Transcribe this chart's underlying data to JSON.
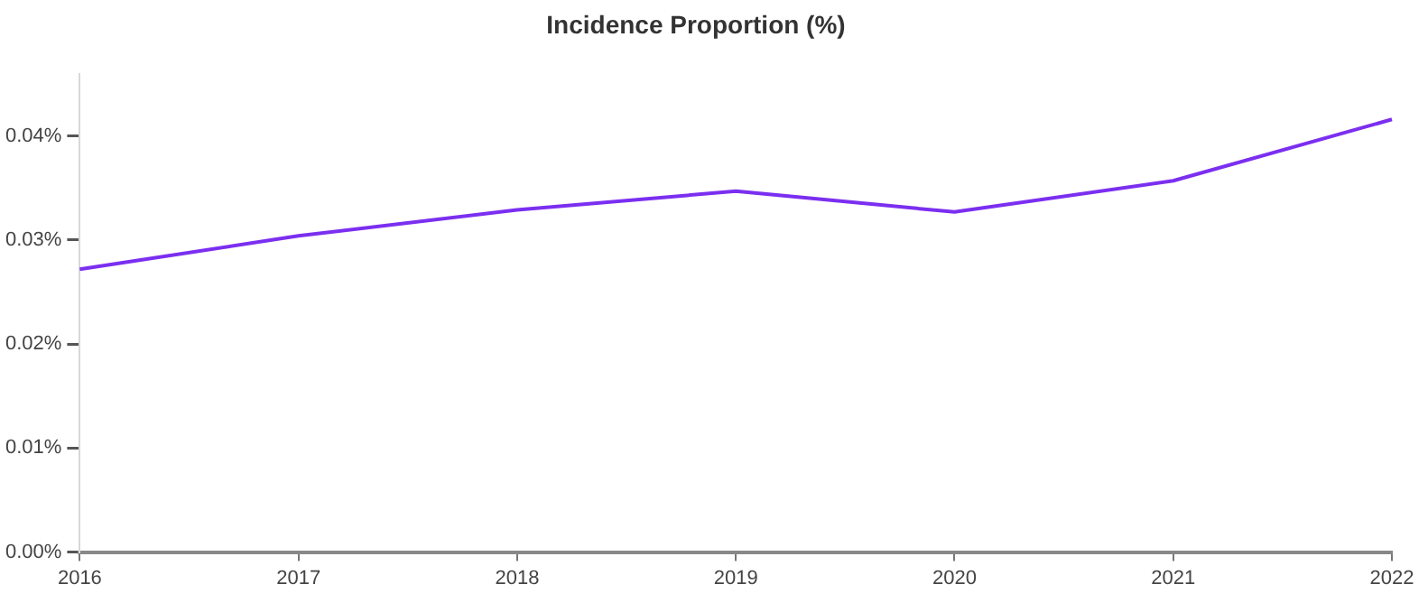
{
  "chart_data": {
    "type": "line",
    "title": "Incidence Proportion (%)",
    "categories": [
      "2016",
      "2017",
      "2018",
      "2019",
      "2020",
      "2021",
      "2022"
    ],
    "series": [
      {
        "color": "#7b2ff0",
        "values": [
          0.0272,
          0.0304,
          0.0329,
          0.0347,
          0.0327,
          0.0357,
          0.0416
        ]
      }
    ],
    "ylim": [
      0,
      0.046
    ],
    "yticks": [
      {
        "value": 0,
        "label": "0.00%"
      },
      {
        "value": 0.01,
        "label": "0.01%"
      },
      {
        "value": 0.02,
        "label": "0.02%"
      },
      {
        "value": 0.03,
        "label": "0.03%"
      },
      {
        "value": 0.04,
        "label": "0.04%"
      }
    ],
    "grid": false,
    "legend": false,
    "marker": "none",
    "line_style": "solid"
  }
}
